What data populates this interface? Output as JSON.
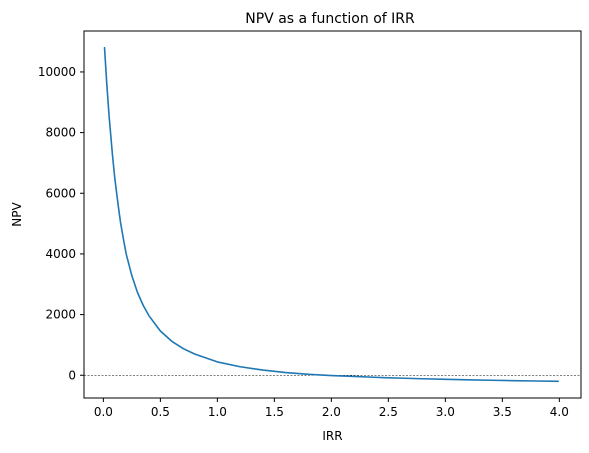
{
  "chart_data": {
    "type": "line",
    "title": "NPV as a function of IRR",
    "xlabel": "IRR",
    "ylabel": "NPV",
    "xlim": [
      -0.17,
      4.19
    ],
    "ylim": [
      -750,
      11350
    ],
    "xticks": [
      0.0,
      0.5,
      1.0,
      1.5,
      2.0,
      2.5,
      3.0,
      3.5,
      4.0
    ],
    "xtick_labels": [
      "0.0",
      "0.5",
      "1.0",
      "1.5",
      "2.0",
      "2.5",
      "3.0",
      "3.5",
      "4.0"
    ],
    "yticks": [
      0,
      2000,
      4000,
      6000,
      8000,
      10000
    ],
    "ytick_labels": [
      "0",
      "2000",
      "4000",
      "6000",
      "8000",
      "10000"
    ],
    "grid": false,
    "reference_line": {
      "y": 0,
      "style": "dashed",
      "color": "#000000"
    },
    "series": [
      {
        "color": "#1f77b4",
        "x": [
          0.01,
          0.03,
          0.05,
          0.08,
          0.1,
          0.13,
          0.15,
          0.18,
          0.2,
          0.25,
          0.3,
          0.35,
          0.4,
          0.5,
          0.6,
          0.7,
          0.8,
          1.0,
          1.2,
          1.4,
          1.6,
          1.8,
          2.0,
          2.2,
          2.4,
          2.6,
          2.8,
          3.0,
          3.2,
          3.4,
          3.6,
          3.8,
          3.99
        ],
        "y": [
          10800,
          9600,
          8550,
          7250,
          6500,
          5600,
          5050,
          4400,
          4000,
          3280,
          2720,
          2300,
          1960,
          1460,
          1120,
          880,
          700,
          440,
          280,
          170,
          90,
          30,
          -10,
          -40,
          -70,
          -95,
          -115,
          -135,
          -150,
          -165,
          -178,
          -190,
          -200
        ]
      }
    ]
  }
}
